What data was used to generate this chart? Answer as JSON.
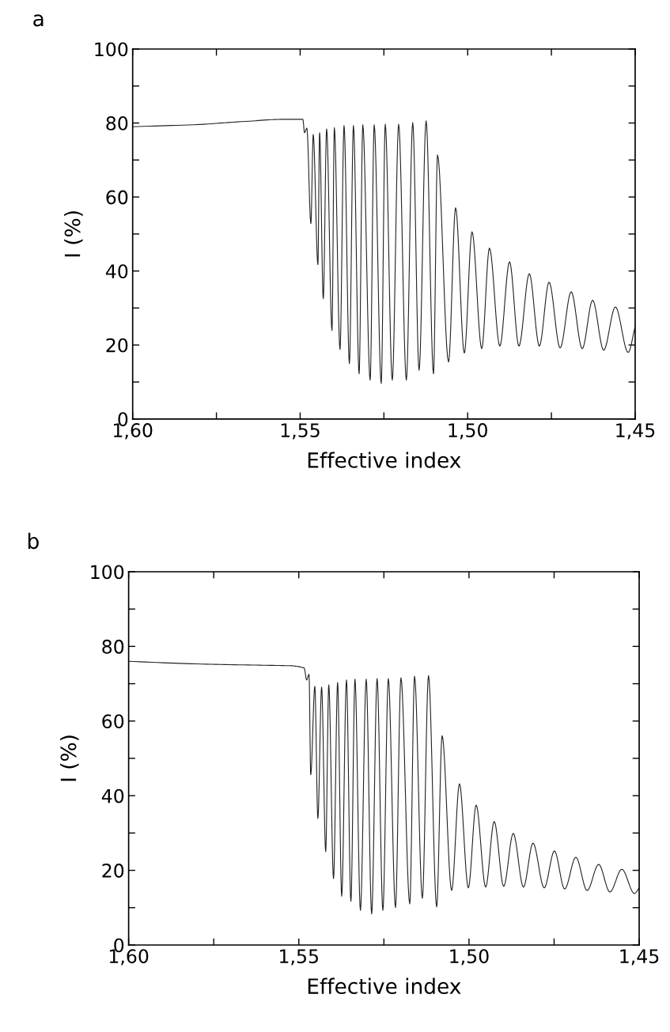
{
  "chart_data": [
    {
      "type": "line",
      "title": "a",
      "xlabel": "Effective index",
      "ylabel": "I (%)",
      "xlim": [
        1.6,
        1.45
      ],
      "xticks": [
        {
          "value": 1.6,
          "label": "1,60"
        },
        {
          "value": 1.575,
          "label": null
        },
        {
          "value": 1.55,
          "label": "1,55"
        },
        {
          "value": 1.525,
          "label": null
        },
        {
          "value": 1.5,
          "label": "1,50"
        },
        {
          "value": 1.475,
          "label": null
        },
        {
          "value": 1.45,
          "label": "1,45"
        }
      ],
      "ylim": [
        0,
        100
      ],
      "yticks": [
        0,
        {
          "value": 10,
          "label": null
        },
        20,
        {
          "value": 30,
          "label": null
        },
        40,
        {
          "value": 50,
          "label": null
        },
        60,
        {
          "value": 70,
          "label": null
        },
        80,
        {
          "value": 90,
          "label": null
        },
        100
      ],
      "grid": false,
      "marker": "none",
      "line_style": "solid",
      "series": [
        {
          "color": "#222222",
          "x": [
            1.6,
            1.58,
            1.565,
            1.555,
            1.5492,
            1.5487,
            1.548,
            1.5468,
            1.5461,
            1.5447,
            1.5442,
            1.5431,
            1.5421,
            1.5405,
            1.5398,
            1.5381,
            1.5369,
            1.5353,
            1.5341,
            1.5324,
            1.5313,
            1.5291,
            1.5279,
            1.5258,
            1.5246,
            1.5225,
            1.5206,
            1.5183,
            1.5164,
            1.5145,
            1.5124,
            1.5102,
            1.509,
            1.5057,
            1.5036,
            1.501,
            1.4987,
            1.4958,
            1.4935,
            1.4904,
            1.4875,
            1.4847,
            1.4816,
            1.4786,
            1.4757,
            1.4724,
            1.4691,
            1.4658,
            1.4627,
            1.4594,
            1.4559,
            1.4521,
            1.45
          ],
          "values": [
            79.0,
            79.6,
            80.5,
            81.0,
            81.0,
            77.4,
            78.6,
            52.8,
            76.9,
            41.7,
            77.4,
            32.5,
            78.4,
            23.9,
            78.7,
            18.8,
            79.3,
            15.0,
            79.3,
            12.2,
            79.5,
            10.5,
            79.5,
            9.6,
            79.7,
            10.5,
            79.7,
            10.5,
            80.1,
            13.2,
            80.6,
            12.2,
            71.4,
            15.4,
            57.1,
            17.8,
            50.6,
            19.0,
            46.2,
            19.7,
            42.5,
            19.7,
            39.3,
            19.7,
            37.0,
            19.2,
            34.4,
            19.0,
            32.1,
            18.6,
            30.3,
            18.0,
            25.0
          ]
        }
      ]
    },
    {
      "type": "line",
      "title": "b",
      "xlabel": "Effective index",
      "ylabel": "I (%)",
      "xlim": [
        1.6,
        1.45
      ],
      "xticks": [
        {
          "value": 1.6,
          "label": "1,60"
        },
        {
          "value": 1.575,
          "label": null
        },
        {
          "value": 1.55,
          "label": "1,55"
        },
        {
          "value": 1.525,
          "label": null
        },
        {
          "value": 1.5,
          "label": "1,50"
        },
        {
          "value": 1.475,
          "label": null
        },
        {
          "value": 1.45,
          "label": "1,45"
        }
      ],
      "ylim": [
        0,
        100
      ],
      "yticks": [
        0,
        {
          "value": 10,
          "label": null
        },
        20,
        {
          "value": 30,
          "label": null
        },
        40,
        {
          "value": 50,
          "label": null
        },
        60,
        {
          "value": 70,
          "label": null
        },
        80,
        {
          "value": 90,
          "label": null
        },
        100
      ],
      "grid": false,
      "marker": "none",
      "line_style": "solid",
      "series": [
        {
          "color": "#222222",
          "x": [
            1.6,
            1.5798,
            1.5635,
            1.5519,
            1.5484,
            1.5477,
            1.547,
            1.5465,
            1.5453,
            1.5444,
            1.5433,
            1.5421,
            1.5412,
            1.5398,
            1.5386,
            1.5374,
            1.536,
            1.5347,
            1.5335,
            1.5319,
            1.5302,
            1.5286,
            1.527,
            1.5253,
            1.5237,
            1.5216,
            1.52,
            1.5174,
            1.516,
            1.5137,
            1.5119,
            1.5095,
            1.5079,
            1.5051,
            1.5028,
            1.5002,
            1.4979,
            1.4951,
            1.4926,
            1.4898,
            1.487,
            1.484,
            1.4812,
            1.4779,
            1.4749,
            1.4719,
            1.4686,
            1.4653,
            1.4619,
            1.4586,
            1.4551,
            1.4514,
            1.45
          ],
          "values": [
            76.0,
            75.3,
            75.0,
            74.8,
            74.2,
            71.0,
            72.5,
            45.6,
            69.3,
            33.9,
            69.1,
            25.0,
            69.7,
            17.8,
            70.3,
            13.1,
            71.0,
            11.7,
            71.2,
            9.3,
            71.2,
            8.3,
            71.4,
            9.3,
            71.4,
            10.0,
            71.6,
            11.0,
            72.0,
            12.5,
            72.2,
            10.2,
            56.1,
            14.6,
            43.2,
            15.3,
            37.5,
            15.5,
            33.1,
            15.7,
            29.9,
            15.5,
            27.3,
            15.3,
            25.2,
            15.0,
            23.5,
            14.6,
            21.6,
            14.2,
            20.3,
            13.8,
            15.3
          ]
        }
      ]
    }
  ]
}
